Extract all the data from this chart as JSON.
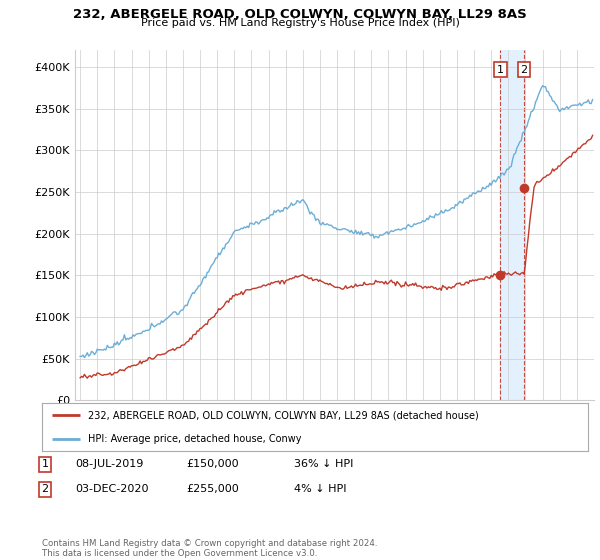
{
  "title1": "232, ABERGELE ROAD, OLD COLWYN, COLWYN BAY, LL29 8AS",
  "title2": "Price paid vs. HM Land Registry's House Price Index (HPI)",
  "legend_line1": "232, ABERGELE ROAD, OLD COLWYN, COLWYN BAY, LL29 8AS (detached house)",
  "legend_line2": "HPI: Average price, detached house, Conwy",
  "annotation1": {
    "label": "1",
    "date": "08-JUL-2019",
    "price": "£150,000",
    "hpi": "36% ↓ HPI"
  },
  "annotation2": {
    "label": "2",
    "date": "03-DEC-2020",
    "price": "£255,000",
    "hpi": "4% ↓ HPI"
  },
  "footer": "Contains HM Land Registry data © Crown copyright and database right 2024.\nThis data is licensed under the Open Government Licence v3.0.",
  "hpi_color": "#6baed6",
  "price_color": "#c0392b",
  "shade_color": "#ddeeff",
  "annotation_color": "#c0392b",
  "ylim": [
    0,
    420000
  ],
  "yticks": [
    0,
    50000,
    100000,
    150000,
    200000,
    250000,
    300000,
    350000,
    400000
  ],
  "ytick_labels": [
    "£0",
    "£50K",
    "£100K",
    "£150K",
    "£200K",
    "£250K",
    "£300K",
    "£350K",
    "£400K"
  ],
  "background_color": "#ffffff",
  "grid_color": "#cccccc",
  "sale1_x": 2019.54,
  "sale1_y": 150000,
  "sale2_x": 2020.92,
  "sale2_y": 255000,
  "xmin": 1994.7,
  "xmax": 2025.0
}
